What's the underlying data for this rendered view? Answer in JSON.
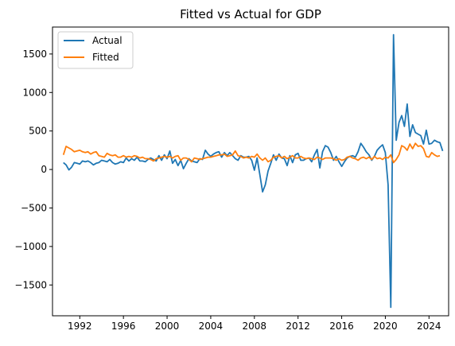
{
  "chart_data": {
    "type": "line",
    "title": "Fitted vs Actual for GDP",
    "xlabel": "",
    "ylabel": "",
    "xlim": [
      1989.5,
      2025.8
    ],
    "ylim": [
      -1900,
      1850
    ],
    "x_ticks": [
      1992,
      1996,
      2000,
      2004,
      2008,
      2012,
      2016,
      2020,
      2024
    ],
    "y_ticks": [
      -1500,
      -1000,
      -500,
      0,
      500,
      1000,
      1500
    ],
    "grid": false,
    "legend_position": "top-left",
    "series": [
      {
        "name": "Actual",
        "color": "#1f77b4",
        "points": [
          [
            1990.5,
            90
          ],
          [
            1990.75,
            60
          ],
          [
            1991.0,
            -5
          ],
          [
            1991.25,
            30
          ],
          [
            1991.5,
            90
          ],
          [
            1991.75,
            80
          ],
          [
            1992.0,
            70
          ],
          [
            1992.25,
            110
          ],
          [
            1992.5,
            100
          ],
          [
            1992.75,
            110
          ],
          [
            1993.0,
            90
          ],
          [
            1993.25,
            60
          ],
          [
            1993.5,
            80
          ],
          [
            1993.75,
            90
          ],
          [
            1994.0,
            120
          ],
          [
            1994.25,
            110
          ],
          [
            1994.5,
            100
          ],
          [
            1994.75,
            130
          ],
          [
            1995.0,
            90
          ],
          [
            1995.25,
            70
          ],
          [
            1995.5,
            80
          ],
          [
            1995.75,
            100
          ],
          [
            1996.0,
            90
          ],
          [
            1996.25,
            150
          ],
          [
            1996.5,
            110
          ],
          [
            1996.75,
            140
          ],
          [
            1997.0,
            120
          ],
          [
            1997.25,
            160
          ],
          [
            1997.5,
            110
          ],
          [
            1997.75,
            110
          ],
          [
            1998.0,
            100
          ],
          [
            1998.25,
            130
          ],
          [
            1998.5,
            150
          ],
          [
            1998.75,
            130
          ],
          [
            1999.0,
            110
          ],
          [
            1999.25,
            180
          ],
          [
            1999.5,
            120
          ],
          [
            1999.75,
            190
          ],
          [
            2000.0,
            140
          ],
          [
            2000.25,
            240
          ],
          [
            2000.5,
            80
          ],
          [
            2000.75,
            130
          ],
          [
            2001.0,
            50
          ],
          [
            2001.25,
            120
          ],
          [
            2001.5,
            10
          ],
          [
            2001.75,
            80
          ],
          [
            2002.0,
            140
          ],
          [
            2002.25,
            110
          ],
          [
            2002.5,
            100
          ],
          [
            2002.75,
            90
          ],
          [
            2003.0,
            140
          ],
          [
            2003.25,
            130
          ],
          [
            2003.5,
            250
          ],
          [
            2003.75,
            200
          ],
          [
            2004.0,
            170
          ],
          [
            2004.25,
            200
          ],
          [
            2004.5,
            220
          ],
          [
            2004.75,
            230
          ],
          [
            2005.0,
            160
          ],
          [
            2005.25,
            220
          ],
          [
            2005.5,
            180
          ],
          [
            2005.75,
            220
          ],
          [
            2006.0,
            180
          ],
          [
            2006.25,
            140
          ],
          [
            2006.5,
            120
          ],
          [
            2006.75,
            180
          ],
          [
            2007.0,
            160
          ],
          [
            2007.25,
            160
          ],
          [
            2007.5,
            170
          ],
          [
            2007.75,
            120
          ],
          [
            2008.0,
            -10
          ],
          [
            2008.25,
            150
          ],
          [
            2008.5,
            -70
          ],
          [
            2008.75,
            -290
          ],
          [
            2009.0,
            -200
          ],
          [
            2009.25,
            -20
          ],
          [
            2009.5,
            80
          ],
          [
            2009.75,
            190
          ],
          [
            2010.0,
            120
          ],
          [
            2010.25,
            200
          ],
          [
            2010.5,
            150
          ],
          [
            2010.75,
            140
          ],
          [
            2011.0,
            50
          ],
          [
            2011.25,
            180
          ],
          [
            2011.5,
            90
          ],
          [
            2011.75,
            190
          ],
          [
            2012.0,
            210
          ],
          [
            2012.25,
            120
          ],
          [
            2012.5,
            120
          ],
          [
            2012.75,
            140
          ],
          [
            2013.0,
            150
          ],
          [
            2013.25,
            100
          ],
          [
            2013.5,
            190
          ],
          [
            2013.75,
            260
          ],
          [
            2014.0,
            20
          ],
          [
            2014.25,
            230
          ],
          [
            2014.5,
            310
          ],
          [
            2014.75,
            290
          ],
          [
            2015.0,
            220
          ],
          [
            2015.25,
            120
          ],
          [
            2015.5,
            170
          ],
          [
            2015.75,
            100
          ],
          [
            2016.0,
            40
          ],
          [
            2016.25,
            100
          ],
          [
            2016.5,
            150
          ],
          [
            2016.75,
            170
          ],
          [
            2017.0,
            180
          ],
          [
            2017.25,
            160
          ],
          [
            2017.5,
            230
          ],
          [
            2017.75,
            340
          ],
          [
            2018.0,
            290
          ],
          [
            2018.25,
            230
          ],
          [
            2018.5,
            190
          ],
          [
            2018.75,
            120
          ],
          [
            2019.0,
            170
          ],
          [
            2019.25,
            250
          ],
          [
            2019.5,
            290
          ],
          [
            2019.75,
            320
          ],
          [
            2020.0,
            220
          ],
          [
            2020.25,
            -200
          ],
          [
            2020.5,
            -1790
          ],
          [
            2020.75,
            1750
          ],
          [
            2021.0,
            380
          ],
          [
            2021.25,
            610
          ],
          [
            2021.5,
            700
          ],
          [
            2021.75,
            560
          ],
          [
            2022.0,
            850
          ],
          [
            2022.25,
            430
          ],
          [
            2022.5,
            580
          ],
          [
            2022.75,
            480
          ],
          [
            2023.0,
            460
          ],
          [
            2023.25,
            440
          ],
          [
            2023.5,
            330
          ],
          [
            2023.75,
            510
          ],
          [
            2024.0,
            330
          ],
          [
            2024.25,
            340
          ],
          [
            2024.5,
            380
          ],
          [
            2024.75,
            360
          ],
          [
            2025.0,
            350
          ],
          [
            2025.25,
            240
          ]
        ]
      },
      {
        "name": "Fitted",
        "color": "#ff7f0e",
        "points": [
          [
            1990.5,
            190
          ],
          [
            1990.75,
            300
          ],
          [
            1991.0,
            280
          ],
          [
            1991.25,
            260
          ],
          [
            1991.5,
            230
          ],
          [
            1991.75,
            240
          ],
          [
            1992.0,
            250
          ],
          [
            1992.25,
            230
          ],
          [
            1992.5,
            220
          ],
          [
            1992.75,
            230
          ],
          [
            1993.0,
            200
          ],
          [
            1993.25,
            220
          ],
          [
            1993.5,
            230
          ],
          [
            1993.75,
            180
          ],
          [
            1994.0,
            170
          ],
          [
            1994.25,
            160
          ],
          [
            1994.5,
            210
          ],
          [
            1994.75,
            190
          ],
          [
            1995.0,
            180
          ],
          [
            1995.25,
            190
          ],
          [
            1995.5,
            160
          ],
          [
            1995.75,
            160
          ],
          [
            1996.0,
            180
          ],
          [
            1996.25,
            160
          ],
          [
            1996.5,
            170
          ],
          [
            1996.75,
            160
          ],
          [
            1997.0,
            180
          ],
          [
            1997.25,
            170
          ],
          [
            1997.5,
            150
          ],
          [
            1997.75,
            160
          ],
          [
            1998.0,
            140
          ],
          [
            1998.25,
            140
          ],
          [
            1998.5,
            130
          ],
          [
            1998.75,
            110
          ],
          [
            1999.0,
            140
          ],
          [
            1999.25,
            150
          ],
          [
            1999.5,
            160
          ],
          [
            1999.75,
            170
          ],
          [
            2000.0,
            160
          ],
          [
            2000.25,
            170
          ],
          [
            2000.5,
            150
          ],
          [
            2000.75,
            170
          ],
          [
            2001.0,
            180
          ],
          [
            2001.25,
            120
          ],
          [
            2001.5,
            150
          ],
          [
            2001.75,
            150
          ],
          [
            2002.0,
            130
          ],
          [
            2002.25,
            100
          ],
          [
            2002.5,
            150
          ],
          [
            2002.75,
            140
          ],
          [
            2003.0,
            130
          ],
          [
            2003.25,
            140
          ],
          [
            2003.5,
            150
          ],
          [
            2003.75,
            160
          ],
          [
            2004.0,
            160
          ],
          [
            2004.25,
            170
          ],
          [
            2004.5,
            180
          ],
          [
            2004.75,
            190
          ],
          [
            2005.0,
            190
          ],
          [
            2005.25,
            200
          ],
          [
            2005.5,
            170
          ],
          [
            2005.75,
            180
          ],
          [
            2006.0,
            190
          ],
          [
            2006.25,
            240
          ],
          [
            2006.5,
            180
          ],
          [
            2006.75,
            170
          ],
          [
            2007.0,
            150
          ],
          [
            2007.25,
            160
          ],
          [
            2007.5,
            150
          ],
          [
            2007.75,
            170
          ],
          [
            2008.0,
            160
          ],
          [
            2008.25,
            200
          ],
          [
            2008.5,
            150
          ],
          [
            2008.75,
            120
          ],
          [
            2009.0,
            150
          ],
          [
            2009.25,
            100
          ],
          [
            2009.5,
            120
          ],
          [
            2009.75,
            160
          ],
          [
            2010.0,
            170
          ],
          [
            2010.25,
            180
          ],
          [
            2010.5,
            150
          ],
          [
            2010.75,
            170
          ],
          [
            2011.0,
            140
          ],
          [
            2011.25,
            160
          ],
          [
            2011.5,
            180
          ],
          [
            2011.75,
            150
          ],
          [
            2012.0,
            150
          ],
          [
            2012.25,
            170
          ],
          [
            2012.5,
            150
          ],
          [
            2012.75,
            140
          ],
          [
            2013.0,
            150
          ],
          [
            2013.25,
            140
          ],
          [
            2013.5,
            130
          ],
          [
            2013.75,
            160
          ],
          [
            2014.0,
            150
          ],
          [
            2014.25,
            130
          ],
          [
            2014.5,
            150
          ],
          [
            2014.75,
            150
          ],
          [
            2015.0,
            150
          ],
          [
            2015.25,
            140
          ],
          [
            2015.5,
            120
          ],
          [
            2015.75,
            140
          ],
          [
            2016.0,
            120
          ],
          [
            2016.25,
            130
          ],
          [
            2016.5,
            160
          ],
          [
            2016.75,
            170
          ],
          [
            2017.0,
            150
          ],
          [
            2017.25,
            140
          ],
          [
            2017.5,
            120
          ],
          [
            2017.75,
            150
          ],
          [
            2018.0,
            160
          ],
          [
            2018.25,
            140
          ],
          [
            2018.5,
            160
          ],
          [
            2018.75,
            130
          ],
          [
            2019.0,
            170
          ],
          [
            2019.25,
            140
          ],
          [
            2019.5,
            150
          ],
          [
            2019.75,
            130
          ],
          [
            2020.0,
            160
          ],
          [
            2020.25,
            150
          ],
          [
            2020.5,
            190
          ],
          [
            2020.75,
            90
          ],
          [
            2021.0,
            130
          ],
          [
            2021.25,
            190
          ],
          [
            2021.5,
            310
          ],
          [
            2021.75,
            290
          ],
          [
            2022.0,
            250
          ],
          [
            2022.25,
            330
          ],
          [
            2022.5,
            270
          ],
          [
            2022.75,
            340
          ],
          [
            2023.0,
            300
          ],
          [
            2023.25,
            310
          ],
          [
            2023.5,
            270
          ],
          [
            2023.75,
            170
          ],
          [
            2024.0,
            160
          ],
          [
            2024.25,
            220
          ],
          [
            2024.5,
            190
          ],
          [
            2024.75,
            170
          ],
          [
            2025.0,
            180
          ]
        ]
      }
    ]
  }
}
